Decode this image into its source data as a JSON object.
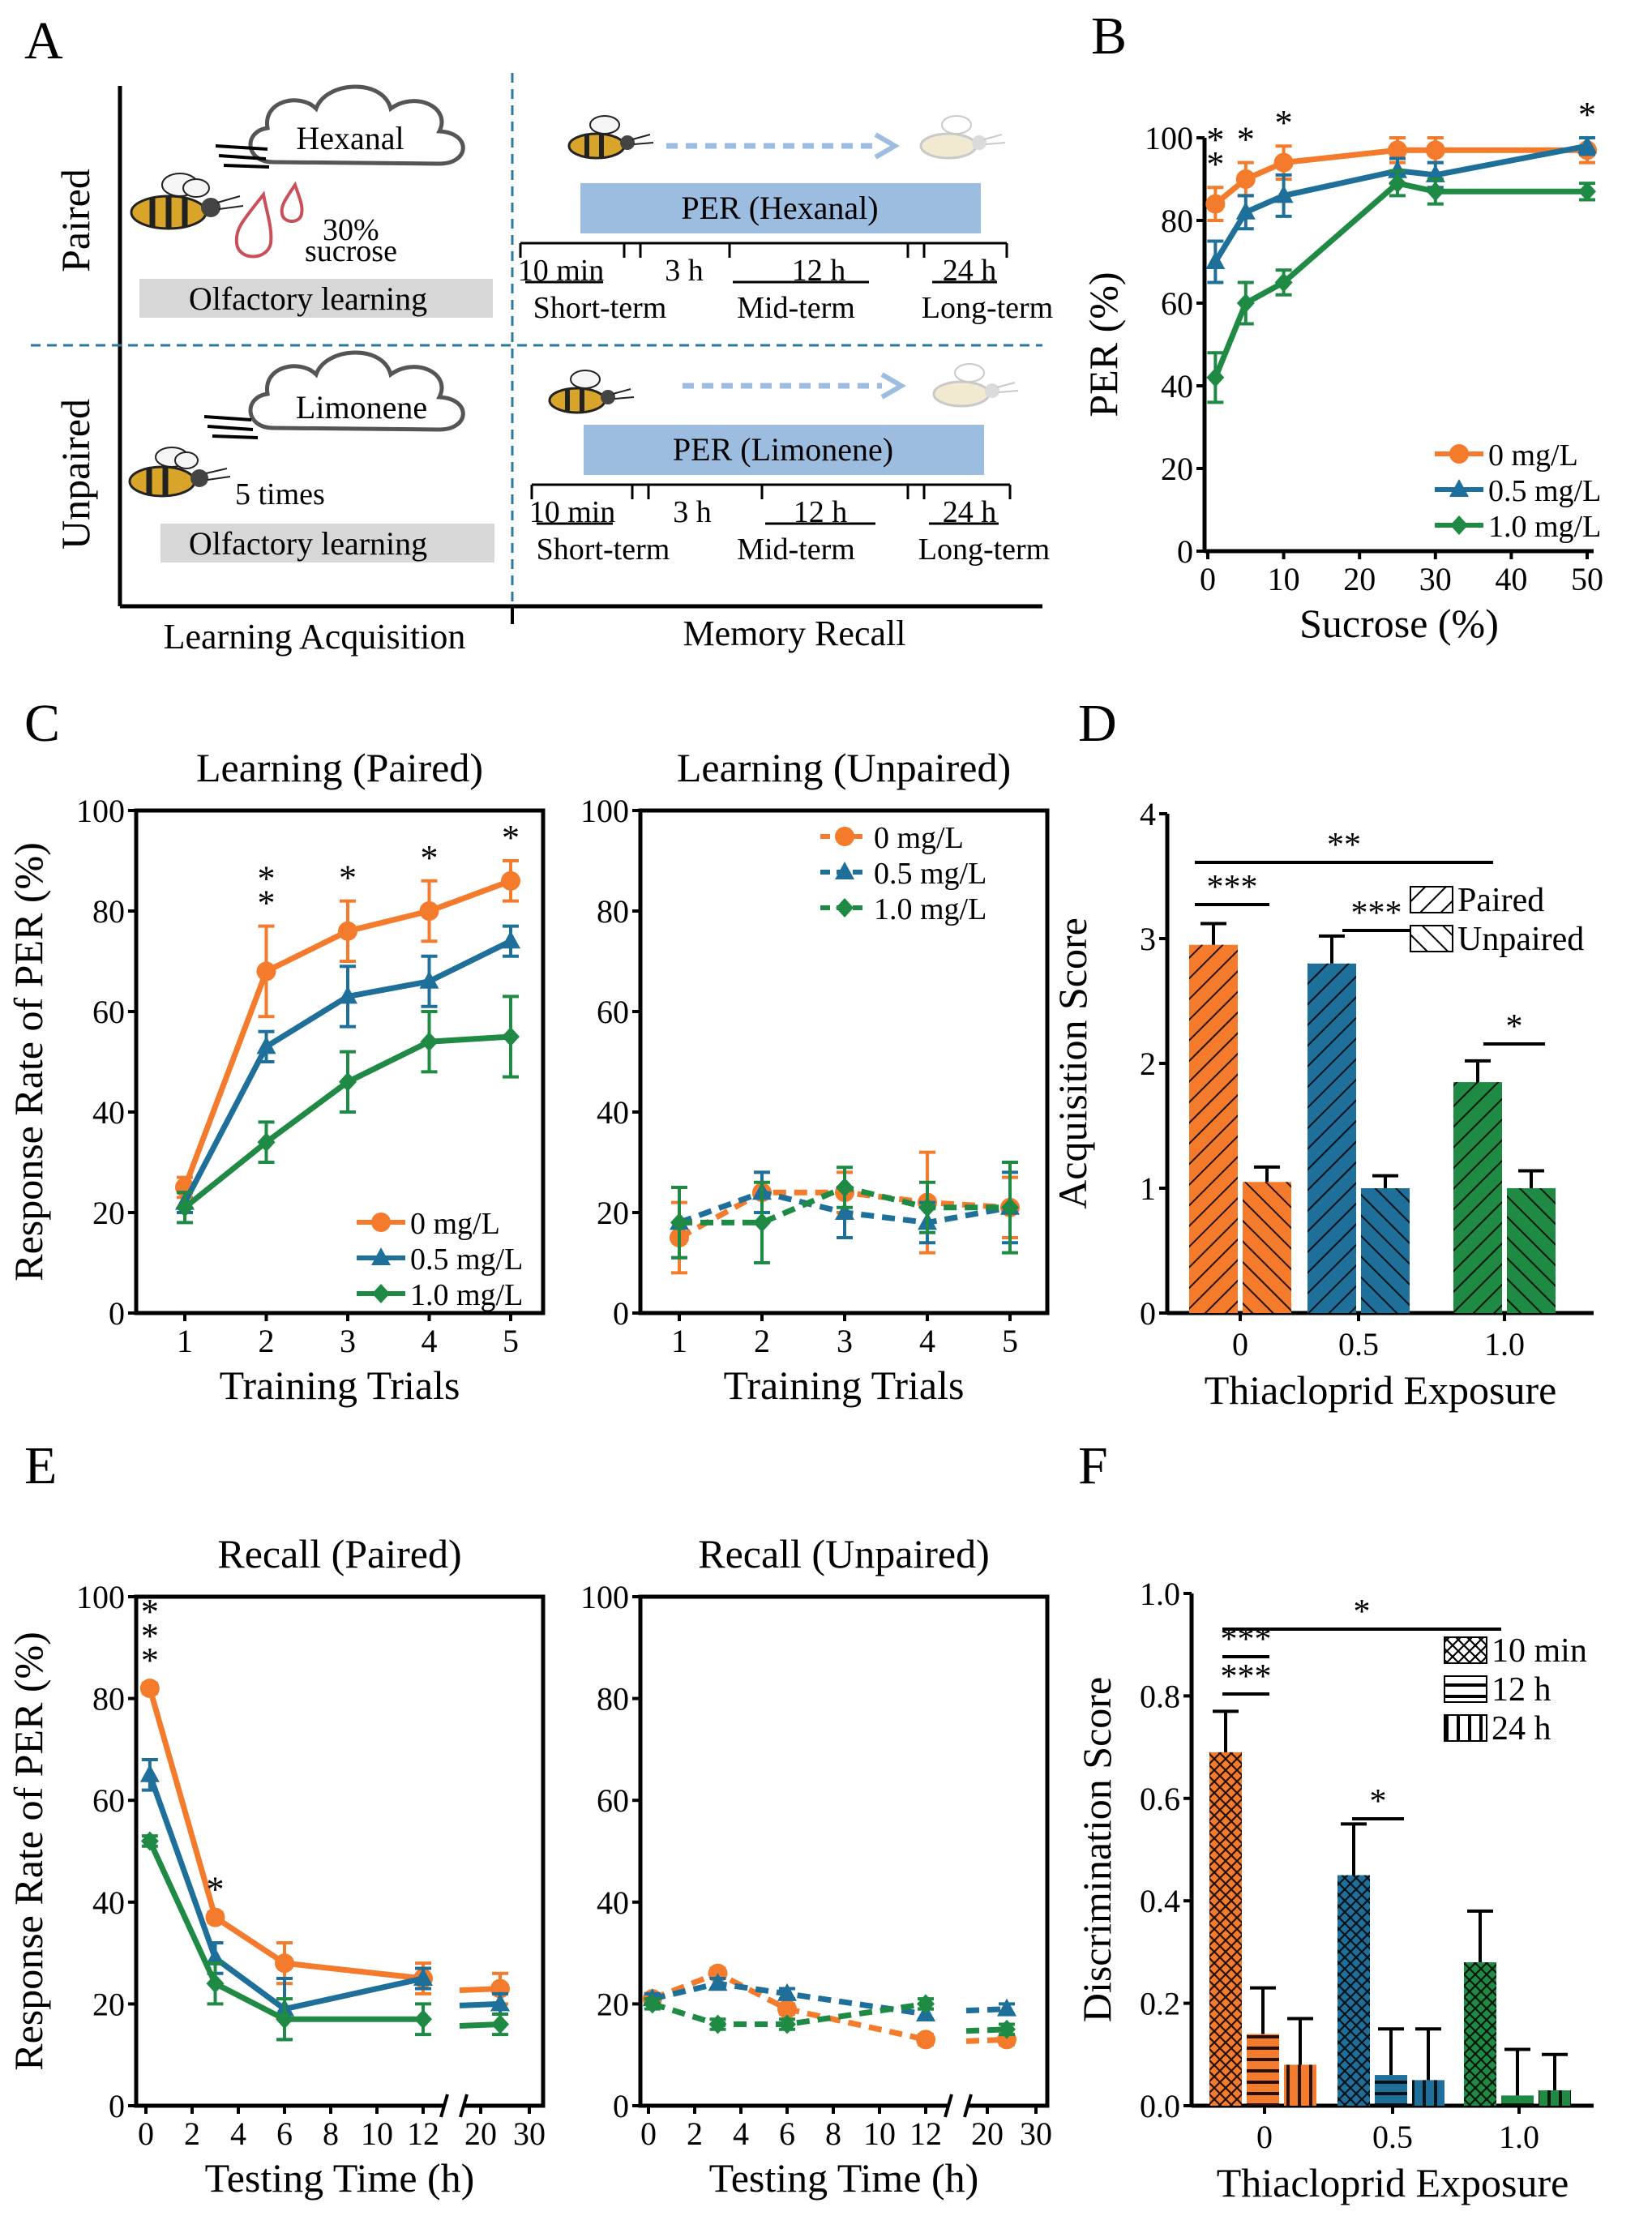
{
  "colors": {
    "orange": "#f47a2c",
    "blue": "#1e6f9a",
    "green": "#1f8a43",
    "panel_bar": "#9dbde0",
    "gray_box": "#d7d7d7",
    "divider": "#2a7aa0",
    "arrow": "#9dbde0"
  },
  "panel_a": {
    "letter": "A",
    "paired": {
      "row_label": "Paired",
      "odor": "Hexanal",
      "reward": "30%",
      "reward2": "sucrose",
      "learning": "Olfactory learning",
      "per": "PER (Hexanal)",
      "times": [
        "10 min",
        "3 h",
        "12 h",
        "24 h"
      ],
      "terms": [
        "Short-term",
        "Mid-term",
        "Long-term"
      ]
    },
    "unpaired": {
      "row_label": "Unpaired",
      "odor": "Limonene",
      "repeat": "5 times",
      "learning": "Olfactory learning",
      "per": "PER (Limonene)",
      "times": [
        "10 min",
        "3 h",
        "12 h",
        "24 h"
      ],
      "terms": [
        "Short-term",
        "Mid-term",
        "Long-term"
      ]
    },
    "footer_left": "Learning Acquisition",
    "footer_right": "Memory Recall",
    "icons": [
      "bee-icon",
      "cloud-icon",
      "droplet-icon",
      "dashed-arrow-icon"
    ]
  },
  "chart_data": [
    {
      "panel": "B",
      "type": "line",
      "xlabel": "Sucrose (%)",
      "ylabel": "PER (%)",
      "xlim": [
        0,
        50
      ],
      "ylim": [
        0,
        100
      ],
      "xticks": [
        "0",
        "10",
        "20",
        "30",
        "40",
        "50"
      ],
      "yticks": [
        "0",
        "20",
        "40",
        "60",
        "80",
        "100"
      ],
      "x": [
        1,
        5,
        10,
        25,
        30,
        50
      ],
      "series": [
        {
          "name": "0    mg/L",
          "values": [
            84,
            90,
            94,
            97,
            97,
            97
          ],
          "err": [
            4,
            4,
            4,
            3,
            3,
            3
          ]
        },
        {
          "name": "0.5 mg/L",
          "values": [
            70,
            82,
            86,
            92,
            91,
            98
          ],
          "err": [
            5,
            4,
            5,
            3,
            3,
            2
          ]
        },
        {
          "name": "1.0 mg/L",
          "values": [
            42,
            60,
            65,
            89,
            87,
            87
          ],
          "err": [
            6,
            5,
            3,
            3,
            3,
            2
          ]
        }
      ],
      "stars": [
        {
          "x": 1,
          "text": "*"
        },
        {
          "x": 1,
          "text": "*"
        },
        {
          "x": 5,
          "text": "*"
        },
        {
          "x": 10,
          "text": "*"
        },
        {
          "x": 50,
          "text": "*"
        }
      ],
      "legend": "bottom-right"
    },
    {
      "panel": "C",
      "type": "line",
      "title": "Learning (Paired)",
      "xlabel": "Training Trials",
      "ylabel": "Response Rate of PER (%)",
      "ylim": [
        0,
        100
      ],
      "xticks": [
        "1",
        "2",
        "3",
        "4",
        "5"
      ],
      "yticks": [
        "0",
        "20",
        "40",
        "60",
        "80",
        "100"
      ],
      "x": [
        1,
        2,
        3,
        4,
        5
      ],
      "series": [
        {
          "name": "0    mg/L",
          "values": [
            25,
            68,
            76,
            80,
            86
          ],
          "err": [
            2,
            9,
            6,
            6,
            4
          ]
        },
        {
          "name": "0.5 mg/L",
          "values": [
            22,
            53,
            63,
            66,
            74
          ],
          "err": [
            2,
            3,
            6,
            5,
            3
          ]
        },
        {
          "name": "1.0 mg/L",
          "values": [
            21,
            34,
            46,
            54,
            55
          ],
          "err": [
            3,
            4,
            6,
            6,
            8
          ]
        }
      ],
      "stars": [
        {
          "x": 2,
          "text": "*"
        },
        {
          "x": 2,
          "text": "*"
        },
        {
          "x": 3,
          "text": "*"
        },
        {
          "x": 4,
          "text": "*"
        },
        {
          "x": 5,
          "text": "*"
        }
      ],
      "legend": "bottom-right"
    },
    {
      "panel": "C2",
      "type": "line",
      "title": "Learning (Unpaired)",
      "xlabel": "Training Trials",
      "ylim": [
        0,
        100
      ],
      "xticks": [
        "1",
        "2",
        "3",
        "4",
        "5"
      ],
      "yticks": [
        "0",
        "20",
        "40",
        "60",
        "80",
        "100"
      ],
      "x": [
        1,
        2,
        3,
        4,
        5
      ],
      "series": [
        {
          "name": "0    mg/L",
          "values": [
            15,
            24,
            24,
            22,
            21
          ],
          "err": [
            7,
            4,
            4,
            10,
            6
          ]
        },
        {
          "name": "0.5 mg/L",
          "values": [
            18,
            24,
            20,
            18,
            21
          ],
          "err": [
            7,
            4,
            5,
            4,
            7
          ]
        },
        {
          "name": "1.0 mg/L",
          "values": [
            18,
            18,
            25,
            21,
            21
          ],
          "err": [
            7,
            8,
            4,
            5,
            9
          ]
        }
      ],
      "legend": "top-right"
    },
    {
      "panel": "D",
      "type": "bar",
      "xlabel": "Thiacloprid Exposure",
      "ylabel": "Acquisition Score",
      "ylim": [
        0,
        4
      ],
      "categories": [
        "0",
        "0.5",
        "1.0"
      ],
      "yticks": [
        "0",
        "1",
        "2",
        "3",
        "4"
      ],
      "series": [
        {
          "name": "Paired",
          "values": [
            2.95,
            2.8,
            1.85
          ],
          "err": [
            0.17,
            0.22,
            0.17
          ]
        },
        {
          "name": "Unpaired",
          "values": [
            1.05,
            1.0,
            1.0
          ],
          "err": [
            0.12,
            0.1,
            0.14
          ]
        }
      ],
      "sig": [
        {
          "from": 0,
          "to": 2,
          "text": "**"
        },
        {
          "from": 0,
          "to": 0,
          "text": "***"
        },
        {
          "from": 1,
          "to": 1,
          "text": "***"
        },
        {
          "from": 2,
          "to": 2,
          "text": "*"
        }
      ],
      "legend": "top-right"
    },
    {
      "panel": "E",
      "type": "line",
      "title": "Recall (Paired)",
      "xlabel": "Testing Time (h)",
      "ylabel": "Response Rate of PER (%)",
      "ylim": [
        0,
        100
      ],
      "xticks": [
        "0",
        "2",
        "4",
        "6",
        "8",
        "10",
        "12",
        "20",
        "30"
      ],
      "yticks": [
        "0",
        "20",
        "40",
        "60",
        "80",
        "100"
      ],
      "x": [
        0.17,
        3,
        6,
        12,
        24
      ],
      "series": [
        {
          "name": "0 mg/L",
          "values": [
            82,
            37,
            28,
            25,
            23
          ],
          "err": [
            1,
            1,
            4,
            3,
            3
          ]
        },
        {
          "name": "0.5 mg/L",
          "values": [
            65,
            29,
            19,
            25,
            20
          ],
          "err": [
            3,
            3,
            6,
            2,
            2
          ]
        },
        {
          "name": "1.0 mg/L",
          "values": [
            52,
            24,
            17,
            17,
            16
          ],
          "err": [
            1,
            4,
            4,
            3,
            2
          ]
        }
      ],
      "stars": [
        {
          "x": 0.17,
          "text": "*"
        },
        {
          "x": 0.17,
          "text": "*"
        },
        {
          "x": 0.17,
          "text": "*"
        },
        {
          "x": 3,
          "text": "*"
        }
      ]
    },
    {
      "panel": "E2",
      "type": "line",
      "title": "Recall (Unpaired)",
      "xlabel": "Testing Time (h)",
      "ylim": [
        0,
        100
      ],
      "xticks": [
        "0",
        "2",
        "4",
        "6",
        "8",
        "10",
        "12",
        "20",
        "30"
      ],
      "yticks": [
        "0",
        "20",
        "40",
        "60",
        "80",
        "100"
      ],
      "x": [
        0.17,
        3,
        6,
        12,
        24
      ],
      "series": [
        {
          "name": "0 mg/L",
          "values": [
            21,
            26,
            19,
            13,
            13
          ],
          "err": [
            1,
            1,
            1,
            1,
            1
          ]
        },
        {
          "name": "0.5 mg/L",
          "values": [
            21,
            24,
            22,
            18,
            19
          ],
          "err": [
            1,
            1,
            1,
            1,
            1
          ]
        },
        {
          "name": "1.0 mg/L",
          "values": [
            20,
            16,
            16,
            20,
            15
          ],
          "err": [
            1,
            1,
            1,
            1,
            1
          ]
        }
      ]
    },
    {
      "panel": "F",
      "type": "bar",
      "xlabel": "Thiacloprid Exposure",
      "ylabel": "Discrimination Score",
      "ylim": [
        0,
        1.0
      ],
      "categories": [
        "0",
        "0.5",
        "1.0"
      ],
      "yticks": [
        "0.0",
        "0.2",
        "0.4",
        "0.6",
        "0.8",
        "1.0"
      ],
      "series": [
        {
          "name": "10 min",
          "values": [
            0.69,
            0.45,
            0.28
          ],
          "err": [
            0.08,
            0.1,
            0.1
          ]
        },
        {
          "name": "12 h",
          "values": [
            0.14,
            0.06,
            0.02
          ],
          "err": [
            0.09,
            0.09,
            0.09
          ]
        },
        {
          "name": "24 h",
          "values": [
            0.08,
            0.05,
            0.03
          ],
          "err": [
            0.09,
            0.1,
            0.07
          ]
        }
      ],
      "sig": [
        {
          "text": "*"
        },
        {
          "text": "***"
        },
        {
          "text": "***"
        },
        {
          "text": "*"
        }
      ],
      "legend": "top-right"
    }
  ]
}
